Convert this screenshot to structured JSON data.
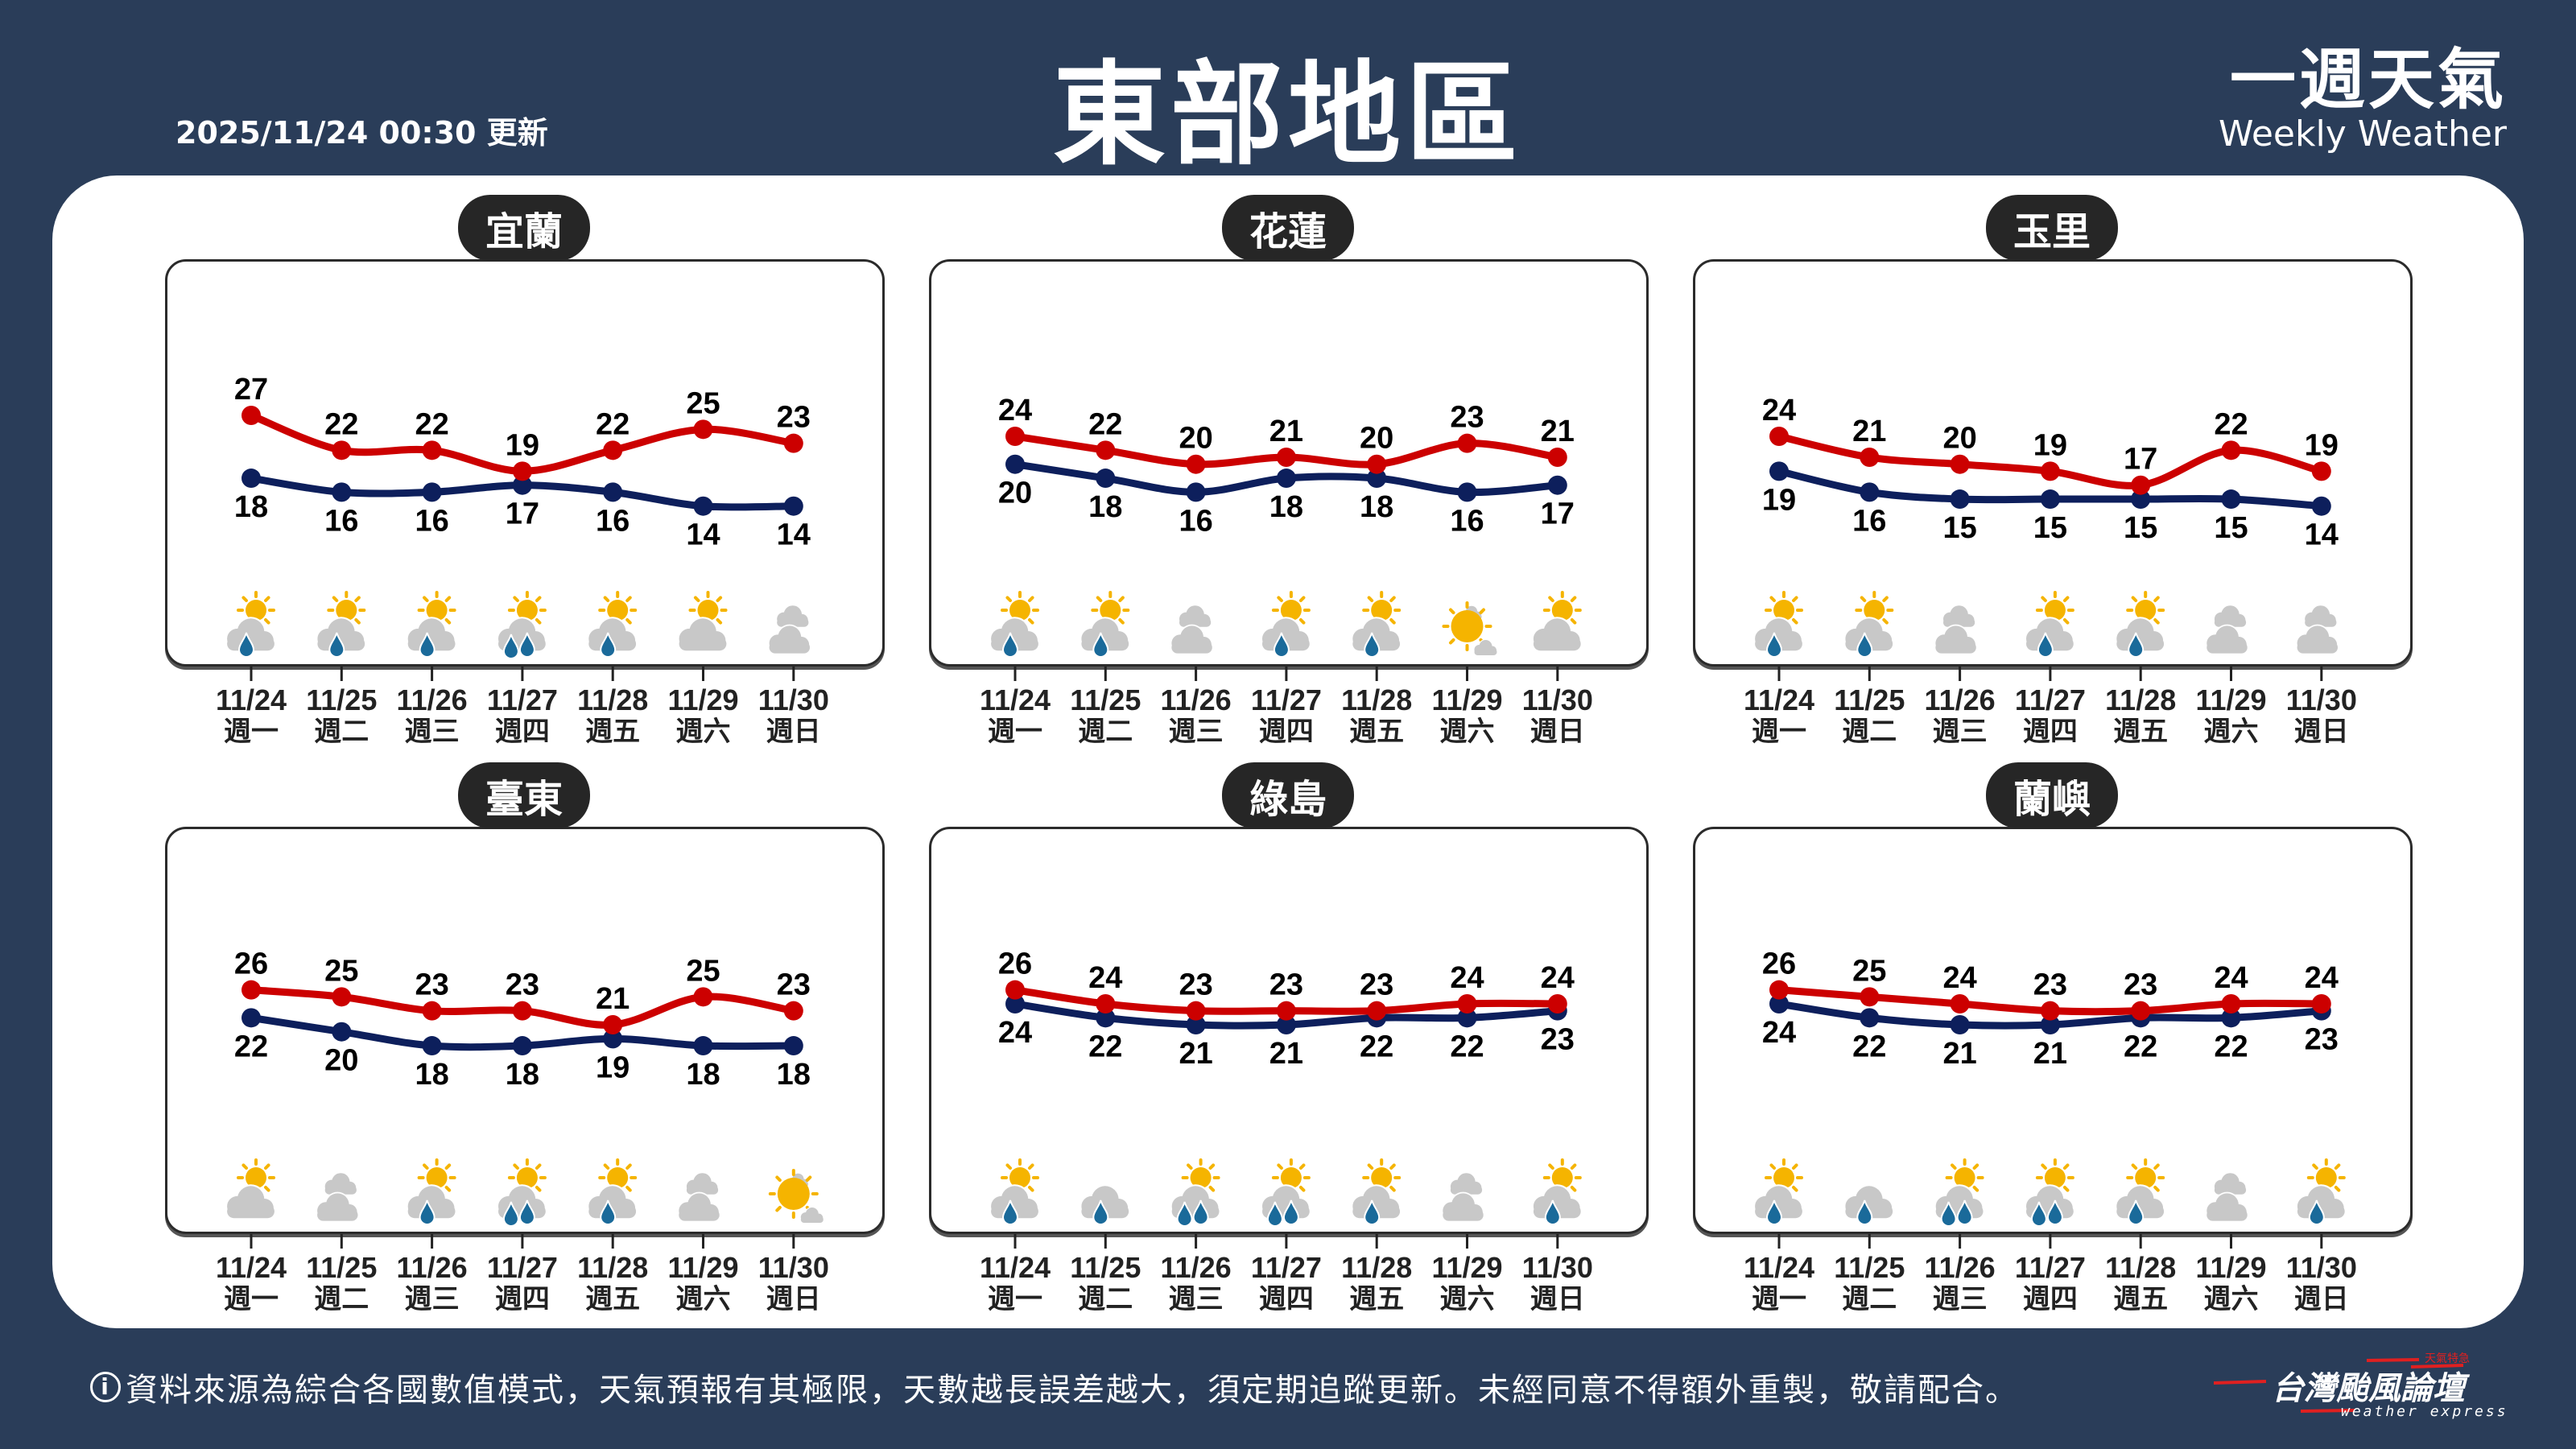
{
  "header": {
    "title": "東部地區",
    "updated": "2025/11/24 00:30 更新",
    "brand_zh": "一週天氣",
    "brand_en": "Weekly Weather"
  },
  "footer": {
    "info_icon": "info-icon",
    "note": "資料來源為綜合各國數值模式，天氣預報有其極限，天數越長誤差越大，須定期追蹤更新。未經同意不得額外重製，敬請配合。",
    "logo_zh": "台灣颱風論壇",
    "logo_en": "weather express",
    "logo_tag": "天氣特急"
  },
  "colors": {
    "high": "#cc0000",
    "low": "#0d1f5c",
    "background": "#2a3d59",
    "sun": "#f5b400",
    "cloud": "#c8c8c8",
    "rain": "#1a6a9a"
  },
  "dates": [
    "11/24",
    "11/25",
    "11/26",
    "11/27",
    "11/28",
    "11/29",
    "11/30"
  ],
  "weekdays": [
    "週一",
    "週二",
    "週三",
    "週四",
    "週五",
    "週六",
    "週日"
  ],
  "chart_data": [
    {
      "type": "line",
      "title": "宜蘭",
      "series": [
        {
          "values": [
            27,
            22,
            22,
            19,
            22,
            25,
            23
          ]
        },
        {
          "values": [
            18,
            16,
            16,
            17,
            16,
            14,
            14
          ]
        }
      ],
      "icons": [
        "partly-cloudy-rain",
        "partly-cloudy-rain",
        "partly-cloudy-rain",
        "partly-cloudy-heavy-rain",
        "partly-cloudy-rain",
        "partly-cloudy",
        "cloudy"
      ]
    },
    {
      "type": "line",
      "title": "花蓮",
      "series": [
        {
          "values": [
            24,
            22,
            20,
            21,
            20,
            23,
            21
          ]
        },
        {
          "values": [
            20,
            18,
            16,
            18,
            18,
            16,
            17
          ]
        }
      ],
      "icons": [
        "partly-cloudy-rain",
        "partly-cloudy-rain",
        "cloudy",
        "partly-cloudy-rain",
        "partly-cloudy-rain",
        "sunny",
        "partly-cloudy"
      ]
    },
    {
      "type": "line",
      "title": "玉里",
      "series": [
        {
          "values": [
            24,
            21,
            20,
            19,
            17,
            22,
            19
          ]
        },
        {
          "values": [
            19,
            16,
            15,
            15,
            15,
            15,
            14
          ]
        }
      ],
      "icons": [
        "partly-cloudy-rain",
        "partly-cloudy-rain",
        "cloudy",
        "partly-cloudy-rain",
        "partly-cloudy-rain",
        "cloudy",
        "cloudy"
      ]
    },
    {
      "type": "line",
      "title": "臺東",
      "series": [
        {
          "values": [
            26,
            25,
            23,
            23,
            21,
            25,
            23
          ]
        },
        {
          "values": [
            22,
            20,
            18,
            18,
            19,
            18,
            18
          ]
        }
      ],
      "icons": [
        "partly-cloudy",
        "cloudy",
        "partly-cloudy-rain",
        "partly-cloudy-heavy-rain",
        "partly-cloudy-rain",
        "cloudy",
        "sunny"
      ]
    },
    {
      "type": "line",
      "title": "綠島",
      "series": [
        {
          "values": [
            26,
            24,
            23,
            23,
            23,
            24,
            24
          ]
        },
        {
          "values": [
            24,
            22,
            21,
            21,
            22,
            22,
            23
          ]
        }
      ],
      "icons": [
        "partly-cloudy-rain",
        "cloudy-rain",
        "partly-cloudy-heavy-rain",
        "partly-cloudy-heavy-rain",
        "partly-cloudy-rain",
        "cloudy",
        "partly-cloudy-rain"
      ]
    },
    {
      "type": "line",
      "title": "蘭嶼",
      "series": [
        {
          "values": [
            26,
            25,
            24,
            23,
            23,
            24,
            24
          ]
        },
        {
          "values": [
            24,
            22,
            21,
            21,
            22,
            22,
            23
          ]
        }
      ],
      "icons": [
        "partly-cloudy-rain",
        "cloudy-rain",
        "partly-cloudy-heavy-rain",
        "partly-cloudy-heavy-rain",
        "partly-cloudy-rain",
        "cloudy",
        "partly-cloudy-rain"
      ]
    }
  ]
}
